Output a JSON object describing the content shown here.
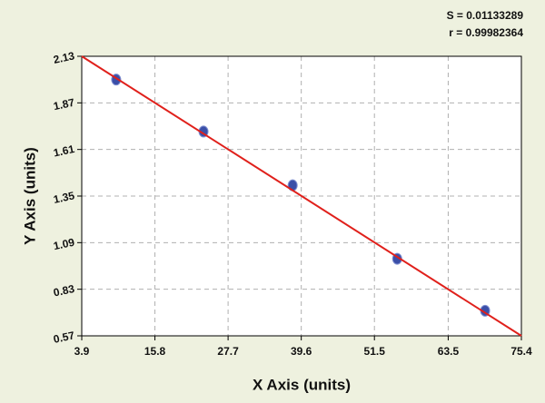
{
  "chart_data": {
    "type": "scatter",
    "annotations": [
      "S = 0.01133289",
      "r = 0.99982364"
    ],
    "x_label": "X Axis (units)",
    "y_label": "Y Axis (units)",
    "series": [
      {
        "color": "#3b4fa8",
        "x": [
          9.5,
          23.7,
          38.2,
          55.2,
          69.5
        ],
        "values": [
          2.0,
          1.71,
          1.41,
          1.0,
          0.71
        ]
      },
      {
        "type": "line",
        "color": "#e0201b",
        "x": [
          3.9,
          75.4
        ],
        "values": [
          2.13,
          0.57
        ]
      }
    ],
    "xlim": [
      3.9,
      75.4
    ],
    "xticks": [
      3.9,
      15.8,
      27.7,
      39.6,
      51.5,
      63.5,
      75.4
    ],
    "ylim": [
      0.57,
      2.13
    ],
    "yticks": [
      0.57,
      0.83,
      1.09,
      1.35,
      1.61,
      1.87,
      2.13
    ],
    "grid": true
  }
}
